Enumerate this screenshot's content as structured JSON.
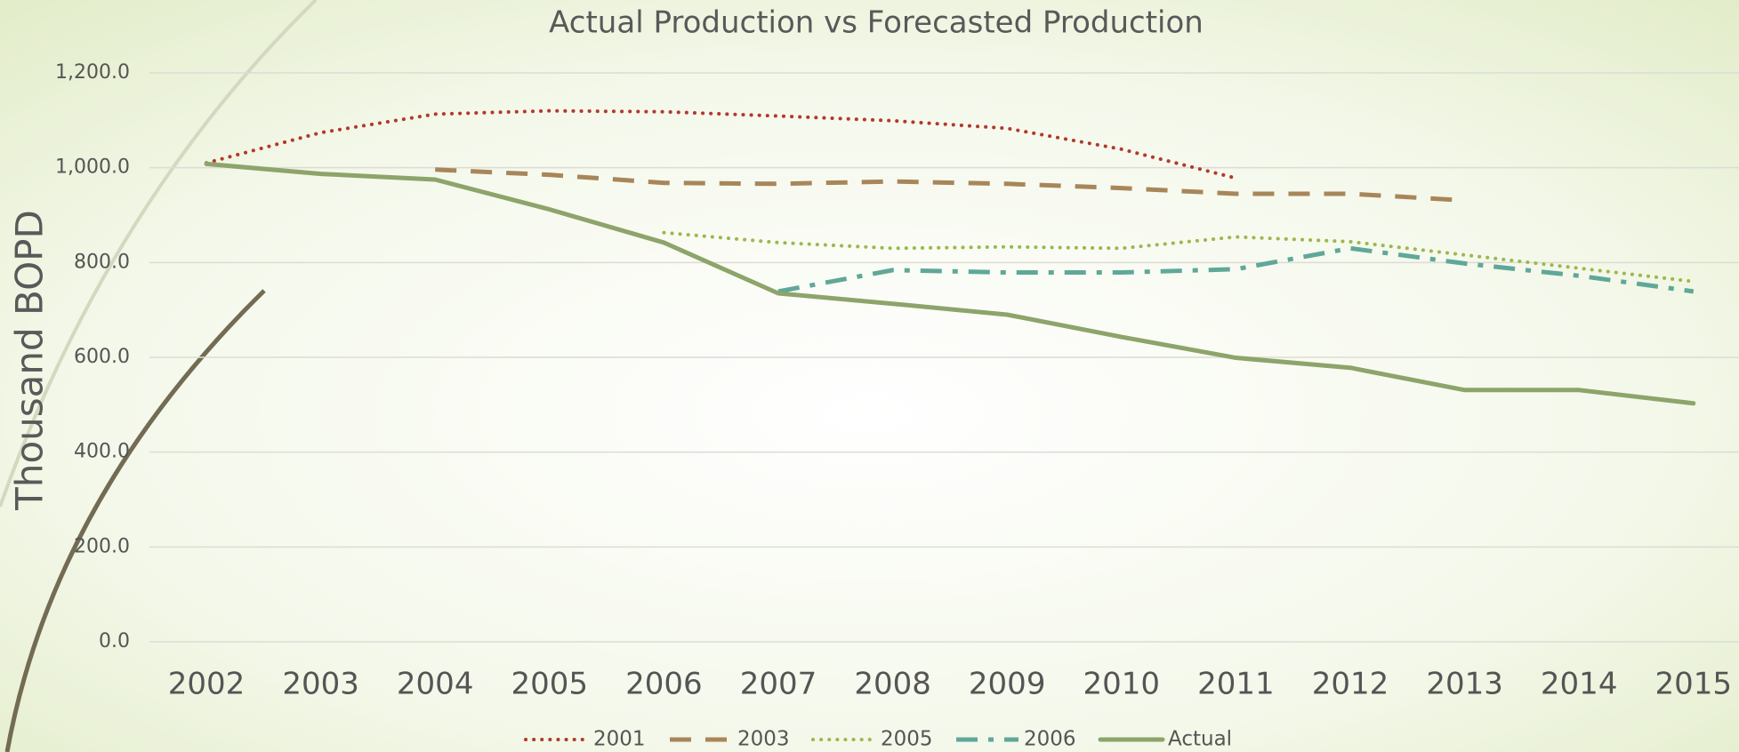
{
  "chart_data": {
    "type": "line",
    "title": "Actual Production vs Forecasted Production",
    "y_label": "Thousand BOPD",
    "categories": [
      "2002",
      "2003",
      "2004",
      "2005",
      "2006",
      "2007",
      "2008",
      "2009",
      "2010",
      "2011",
      "2012",
      "2013",
      "2014",
      "2015"
    ],
    "series": [
      {
        "name": "2001",
        "color": "#b3392b",
        "dash": "dotted",
        "values": [
          1010,
          1074,
          1113,
          1120,
          1118,
          1109,
          1099,
          1083,
          1039,
          978,
          null,
          null,
          null,
          null
        ]
      },
      {
        "name": "2003",
        "color": "#a8865a",
        "dash": "dashed",
        "values": [
          null,
          null,
          996,
          985,
          968,
          966,
          971,
          966,
          957,
          945,
          945,
          931,
          null,
          null
        ]
      },
      {
        "name": "2005",
        "color": "#9bb84e",
        "dash": "dotted",
        "values": [
          null,
          null,
          null,
          null,
          863,
          842,
          830,
          833,
          830,
          854,
          844,
          816,
          788,
          760
        ]
      },
      {
        "name": "2006",
        "color": "#5fa898",
        "dash": "dashdot",
        "values": [
          null,
          null,
          null,
          null,
          null,
          739,
          784,
          779,
          779,
          786,
          830,
          798,
          772,
          739
        ]
      },
      {
        "name": "Actual",
        "color": "#8da46a",
        "dash": "solid",
        "values": [
          1008,
          987,
          975,
          912,
          842,
          735,
          713,
          690,
          643,
          599,
          578,
          531,
          531,
          503
        ]
      }
    ],
    "ylim": [
      0,
      1200
    ],
    "yticks": [
      {
        "value": 0,
        "label": "0.0"
      },
      {
        "value": 200,
        "label": "200.0"
      },
      {
        "value": 400,
        "label": "400.0"
      },
      {
        "value": 600,
        "label": "600.0"
      },
      {
        "value": 800,
        "label": "800.0"
      },
      {
        "value": 1000,
        "label": "1,000.0"
      },
      {
        "value": 1200,
        "label": "1,200.0"
      }
    ],
    "grid": true,
    "legend": "bottom"
  }
}
